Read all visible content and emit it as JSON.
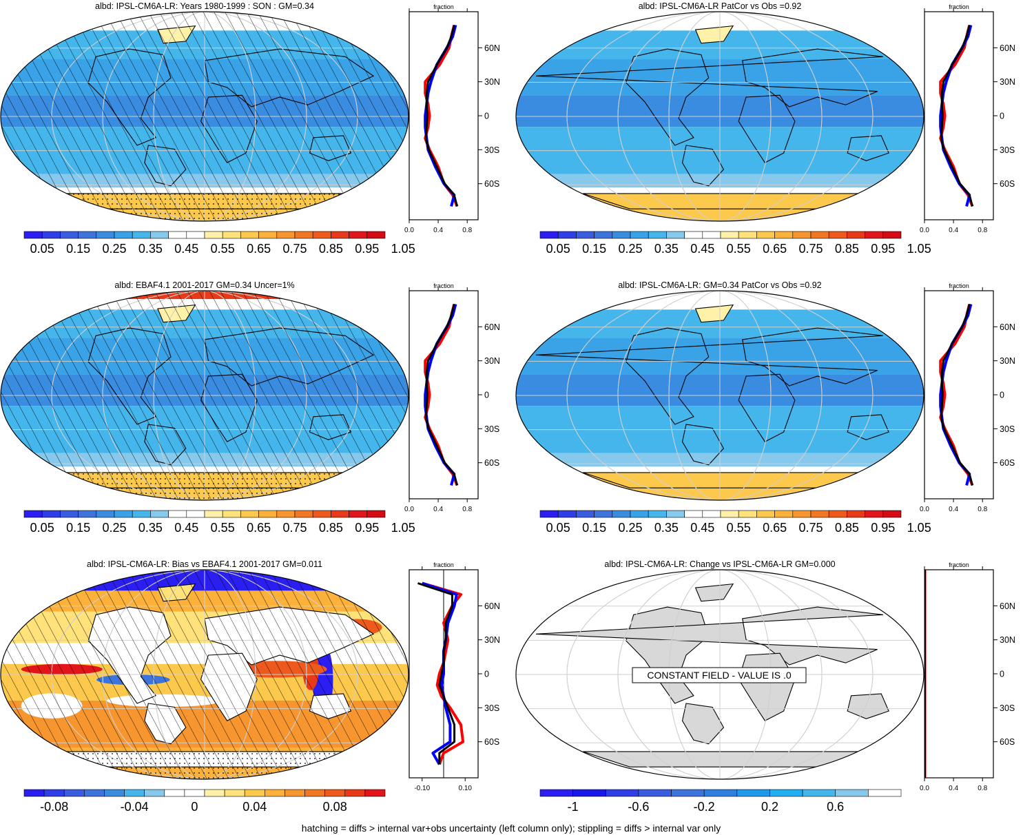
{
  "footer": "hatching = diffs > internal var+obs uncertainty (left column only); stippling = diffs > internal var only",
  "colors": {
    "field_scale": [
      "#2b1ef0",
      "#2f3ee6",
      "#3a5ce0",
      "#3d74dc",
      "#3a8ce0",
      "#3aa2e6",
      "#45b6ec",
      "#86c9ec",
      "#ffffff",
      "#ffffff",
      "#fff2a8",
      "#ffe27a",
      "#fdc94c",
      "#fbb13a",
      "#f7952e",
      "#f27722",
      "#ee5a1c",
      "#e83a18",
      "#e2161a",
      "#d40a14"
    ],
    "bias_scale": [
      "#2b1ef0",
      "#2f3ee6",
      "#3a5ce0",
      "#3d74dc",
      "#3a8ce0",
      "#45b6ec",
      "#86c9ec",
      "#ffffff",
      "#ffffff",
      "#fff2a8",
      "#ffe27a",
      "#fdc94c",
      "#fbb13a",
      "#f7952e",
      "#f27722",
      "#ee5a1c",
      "#e83a18",
      "#e2161a"
    ],
    "change_scale": [
      "#2b1ef0",
      "#1a1ae8",
      "#2f3ee6",
      "#3a5ce0",
      "#3d74dc",
      "#2f7fe0",
      "#1f99ec",
      "#22aef2",
      "#45b6ec",
      "#86c9ec",
      "#ffffff"
    ],
    "model_line": "#ff0000",
    "obs_line": "#0000ff",
    "mean_line": "#000000",
    "land_gray": "#d8d8d8"
  },
  "colorbars": {
    "field_ticks": [
      "0.05",
      "0.15",
      "0.25",
      "0.35",
      "0.45",
      "0.55",
      "0.65",
      "0.75",
      "0.85",
      "0.95",
      "1.05"
    ],
    "bias_ticks": [
      "-0.08",
      "-0.04",
      "0",
      "0.04",
      "0.08"
    ],
    "change_ticks": [
      "-1",
      "-0.6",
      "-0.2",
      "0.2",
      "0.6"
    ]
  },
  "profile": {
    "top_label": "fraction",
    "lat_ticks": [
      "60N",
      "30N",
      "0",
      "30S",
      "60S"
    ],
    "x_ticks_field": [
      "0.0",
      "0.4",
      "0.8"
    ],
    "x_ticks_bias": [
      "-0.10",
      "0.10"
    ]
  },
  "panels": [
    {
      "title": "albd: IPSL-CM6A-LR: Years 1980-1999 : SON : GM=0.34"
    },
    {
      "title": "albd: IPSL-CM6A-LR PatCor vs Obs =0.92"
    },
    {
      "title": "albd: EBAF4.1 2001-2017 GM=0.34 Uncer=1%"
    },
    {
      "title": "albd: IPSL-CM6A-LR: GM=0.34 PatCor vs Obs =0.92"
    },
    {
      "title": "albd: IPSL-CM6A-LR: Bias vs EBAF4.1 2001-2017  GM=0.011"
    },
    {
      "title": "albd: IPSL-CM6A-LR: Change vs IPSL-CM6A-LR GM=0.000",
      "note": "CONSTANT FIELD - VALUE IS .0"
    }
  ],
  "chart_data": [
    {
      "type": "heatmap",
      "title": "albd: IPSL-CM6A-LR: Years 1980-1999 : SON : GM=0.34",
      "colorbar_ticks": [
        "0.05",
        "0.15",
        "0.25",
        "0.35",
        "0.45",
        "0.55",
        "0.65",
        "0.75",
        "0.85",
        "0.95",
        "1.05"
      ],
      "profile": {
        "type": "line",
        "x_ticks": [
          "0.0",
          "0.4",
          "0.8"
        ],
        "lat": [
          80,
          70,
          60,
          45,
          30,
          20,
          10,
          0,
          -10,
          -20,
          -30,
          -45,
          -60,
          -70,
          -80
        ],
        "series": [
          {
            "values": [
              0.62,
              0.58,
              0.55,
              0.42,
              0.22,
              0.22,
              0.26,
              0.28,
              0.26,
              0.22,
              0.28,
              0.4,
              0.48,
              0.6,
              0.66
            ]
          },
          {
            "values": [
              0.64,
              0.6,
              0.52,
              0.38,
              0.3,
              0.26,
              0.24,
              0.22,
              0.22,
              0.24,
              0.26,
              0.36,
              0.48,
              0.62,
              0.58
            ]
          },
          {
            "values": [
              0.62,
              0.58,
              0.52,
              0.38,
              0.26,
              0.24,
              0.24,
              0.25,
              0.24,
              0.23,
              0.27,
              0.38,
              0.49,
              0.62,
              0.66
            ]
          }
        ]
      }
    },
    {
      "type": "heatmap",
      "title": "albd: IPSL-CM6A-LR PatCor vs Obs =0.92",
      "colorbar_ticks": [
        "0.05",
        "0.15",
        "0.25",
        "0.35",
        "0.45",
        "0.55",
        "0.65",
        "0.75",
        "0.85",
        "0.95",
        "1.05"
      ]
    },
    {
      "type": "heatmap",
      "title": "albd: EBAF4.1 2001-2017 GM=0.34 Uncer=1%",
      "colorbar_ticks": [
        "0.05",
        "0.15",
        "0.25",
        "0.35",
        "0.45",
        "0.55",
        "0.65",
        "0.75",
        "0.85",
        "0.95",
        "1.05"
      ]
    },
    {
      "type": "heatmap",
      "title": "albd: IPSL-CM6A-LR: GM=0.34 PatCor vs Obs =0.92",
      "colorbar_ticks": [
        "0.05",
        "0.15",
        "0.25",
        "0.35",
        "0.45",
        "0.55",
        "0.65",
        "0.75",
        "0.85",
        "0.95",
        "1.05"
      ]
    },
    {
      "type": "heatmap",
      "title": "albd: IPSL-CM6A-LR: Bias vs EBAF4.1 2001-2017  GM=0.011",
      "colorbar_ticks": [
        "-0.08",
        "-0.04",
        "0",
        "0.04",
        "0.08"
      ],
      "profile": {
        "type": "line",
        "x_ticks": [
          "-0.10",
          "0.10"
        ],
        "lat": [
          80,
          70,
          60,
          45,
          30,
          20,
          10,
          0,
          -10,
          -20,
          -30,
          -45,
          -60,
          -70,
          -80
        ],
        "series": [
          {
            "values": [
              -0.1,
              0.08,
              0.04,
              0.0,
              0.02,
              0.01,
              0.0,
              -0.02,
              -0.03,
              -0.01,
              0.03,
              0.08,
              0.09,
              0.0,
              -0.02
            ]
          },
          {
            "values": [
              -0.1,
              0.06,
              0.05,
              0.02,
              0.01,
              0.0,
              0.0,
              0.0,
              -0.01,
              0.0,
              0.01,
              0.03,
              0.03,
              -0.05,
              -0.02
            ]
          },
          {
            "values": [
              -0.12,
              0.04,
              0.04,
              0.01,
              0.01,
              0.0,
              0.0,
              -0.01,
              -0.02,
              0.0,
              0.02,
              0.05,
              0.05,
              -0.02,
              -0.02
            ]
          }
        ]
      }
    },
    {
      "type": "heatmap",
      "title": "albd: IPSL-CM6A-LR: Change vs IPSL-CM6A-LR GM=0.000",
      "colorbar_ticks": [
        "-1",
        "-0.6",
        "-0.2",
        "0.2",
        "0.6"
      ]
    }
  ]
}
